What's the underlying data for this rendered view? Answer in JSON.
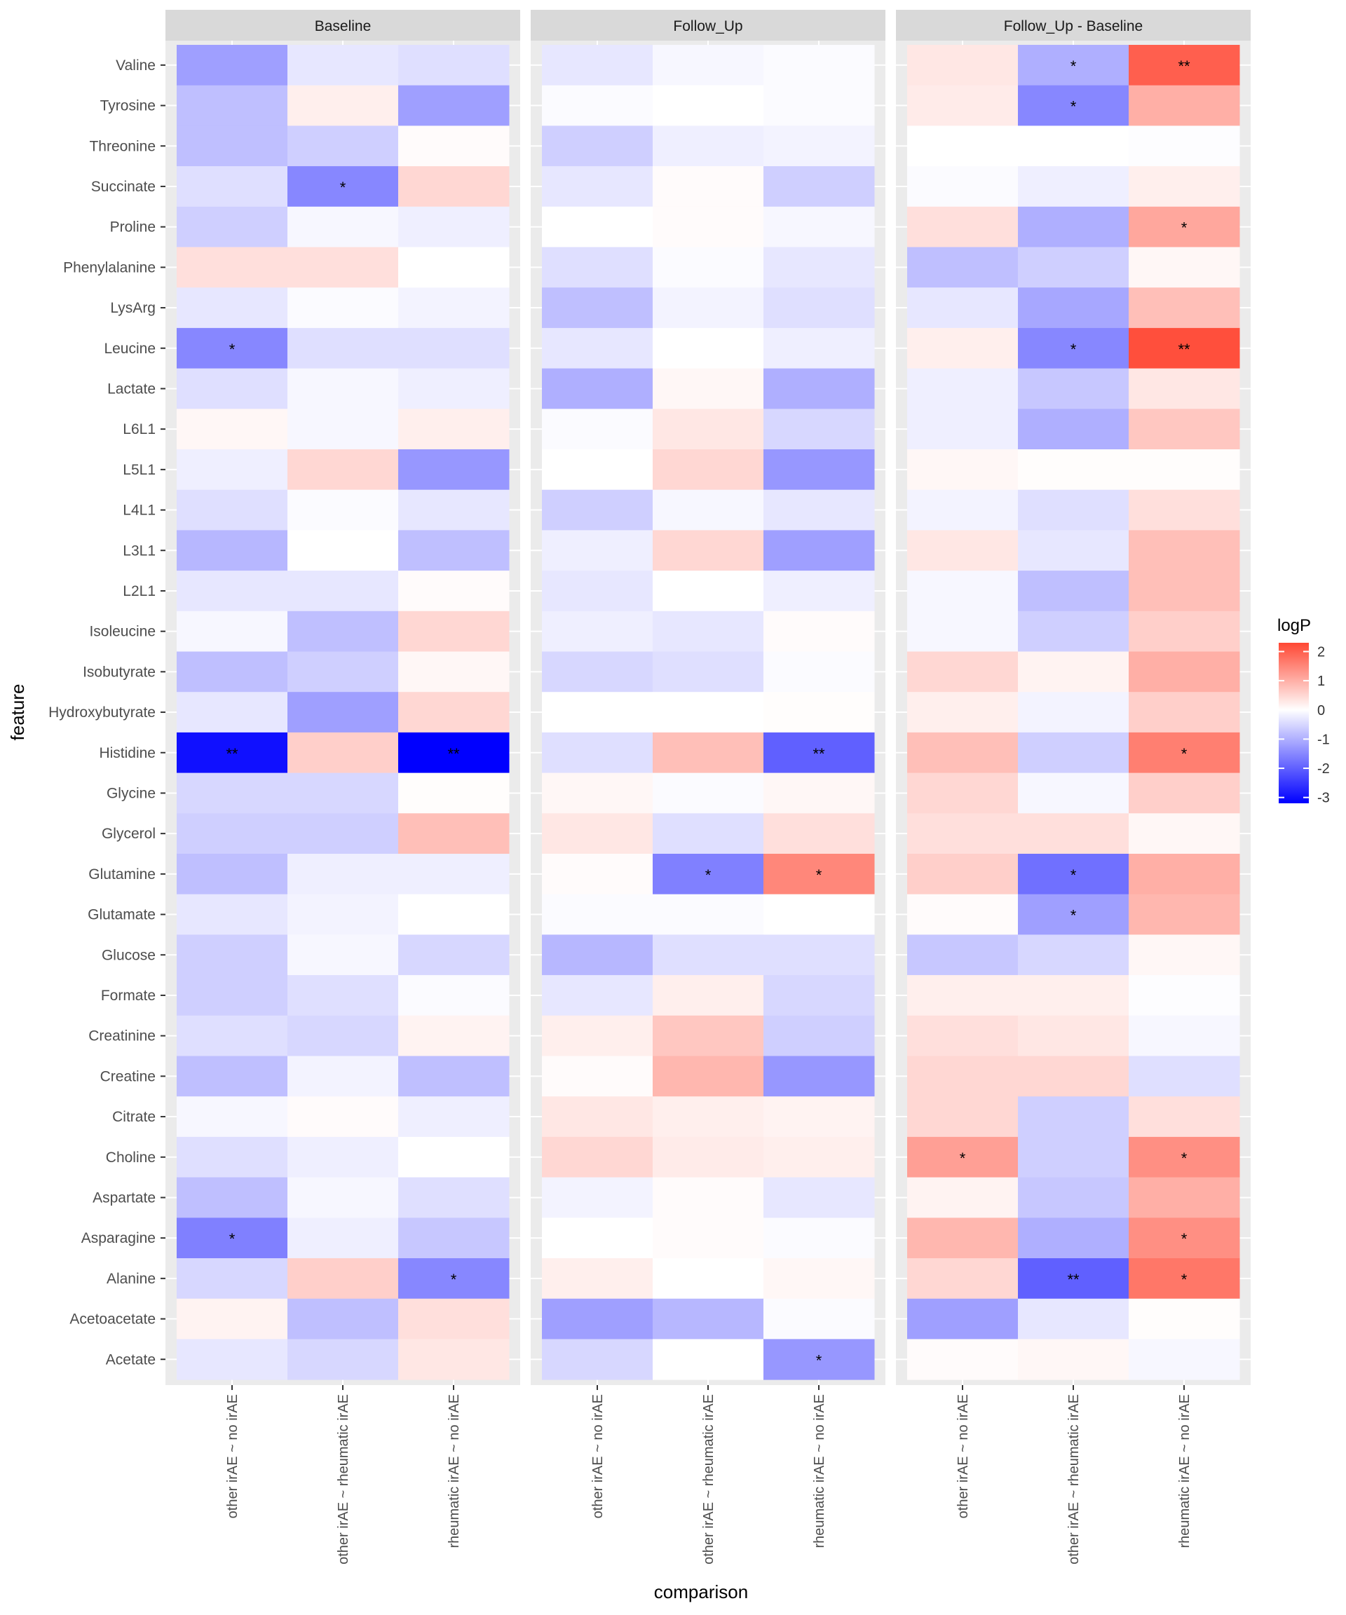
{
  "chart_data": {
    "type": "heatmap",
    "xlabel": "comparison",
    "ylabel": "feature",
    "legend": {
      "title": "logP",
      "placement": "right",
      "range": [
        -3.2,
        2.3
      ],
      "ticks": [
        2,
        1,
        0,
        -1,
        -2,
        -3
      ],
      "tick_labels": [
        "2",
        "1",
        "0",
        "-1",
        "-2",
        "-3"
      ],
      "colors": {
        "low": "#0000ff",
        "mid": "#ffffff",
        "high": "#ff4733"
      }
    },
    "features": [
      "Valine",
      "Tyrosine",
      "Threonine",
      "Succinate",
      "Proline",
      "Phenylalanine",
      "LysArg",
      "Leucine",
      "Lactate",
      "L6L1",
      "L5L1",
      "L4L1",
      "L3L1",
      "L2L1",
      "Isoleucine",
      "Isobutyrate",
      "Hydroxybutyrate",
      "Histidine",
      "Glycine",
      "Glycerol",
      "Glutamine",
      "Glutamate",
      "Glucose",
      "Formate",
      "Creatinine",
      "Creatine",
      "Citrate",
      "Choline",
      "Aspartate",
      "Asparagine",
      "Alanine",
      "Acetoacetate",
      "Acetate"
    ],
    "comparisons": [
      "other irAE ~ no irAE",
      "other irAE ~ rheumatic irAE",
      "rheumatic irAE ~ no irAE"
    ],
    "facets": [
      {
        "title": "Baseline",
        "values": [
          [
            -1.2,
            -0.3,
            -0.4
          ],
          [
            -0.8,
            0.2,
            -1.2
          ],
          [
            -0.8,
            -0.6,
            0.05
          ],
          [
            -0.4,
            -1.5,
            0.5
          ],
          [
            -0.6,
            -0.1,
            -0.2
          ],
          [
            0.4,
            0.4,
            0.0
          ],
          [
            -0.3,
            -0.05,
            -0.15
          ],
          [
            -1.5,
            -0.4,
            -0.4
          ],
          [
            -0.4,
            -0.1,
            -0.2
          ],
          [
            0.1,
            -0.1,
            0.2
          ],
          [
            -0.2,
            0.5,
            -1.3
          ],
          [
            -0.4,
            -0.05,
            -0.3
          ],
          [
            -0.9,
            0.0,
            -0.8
          ],
          [
            -0.3,
            -0.3,
            0.05
          ],
          [
            -0.1,
            -0.8,
            0.5
          ],
          [
            -0.8,
            -0.6,
            0.1
          ],
          [
            -0.3,
            -1.2,
            0.5
          ],
          [
            -3.0,
            0.6,
            -3.2
          ],
          [
            -0.5,
            -0.5,
            0.03
          ],
          [
            -0.6,
            -0.6,
            0.8
          ],
          [
            -0.8,
            -0.2,
            -0.2
          ],
          [
            -0.3,
            -0.15,
            0.0
          ],
          [
            -0.6,
            -0.1,
            -0.5
          ],
          [
            -0.6,
            -0.4,
            -0.05
          ],
          [
            -0.4,
            -0.5,
            0.15
          ],
          [
            -0.8,
            -0.15,
            -0.8
          ],
          [
            -0.1,
            0.05,
            -0.2
          ],
          [
            -0.4,
            -0.2,
            0.0
          ],
          [
            -0.8,
            -0.1,
            -0.4
          ],
          [
            -1.6,
            -0.2,
            -0.7
          ],
          [
            -0.5,
            0.6,
            -1.5
          ],
          [
            0.15,
            -0.8,
            0.4
          ],
          [
            -0.3,
            -0.5,
            0.3
          ]
        ],
        "stars": [
          [
            "",
            "",
            ""
          ],
          [
            "",
            "",
            ""
          ],
          [
            "",
            "",
            ""
          ],
          [
            "",
            "*",
            ""
          ],
          [
            "",
            "",
            ""
          ],
          [
            "",
            "",
            ""
          ],
          [
            "",
            "",
            ""
          ],
          [
            "*",
            "",
            ""
          ],
          [
            "",
            "",
            ""
          ],
          [
            "",
            "",
            ""
          ],
          [
            "",
            "",
            ""
          ],
          [
            "",
            "",
            ""
          ],
          [
            "",
            "",
            ""
          ],
          [
            "",
            "",
            ""
          ],
          [
            "",
            "",
            ""
          ],
          [
            "",
            "",
            ""
          ],
          [
            "",
            "",
            ""
          ],
          [
            "**",
            "",
            "**"
          ],
          [
            "",
            "",
            ""
          ],
          [
            "",
            "",
            ""
          ],
          [
            "",
            "",
            ""
          ],
          [
            "",
            "",
            ""
          ],
          [
            "",
            "",
            ""
          ],
          [
            "",
            "",
            ""
          ],
          [
            "",
            "",
            ""
          ],
          [
            "",
            "",
            ""
          ],
          [
            "",
            "",
            ""
          ],
          [
            "",
            "",
            ""
          ],
          [
            "",
            "",
            ""
          ],
          [
            "*",
            "",
            ""
          ],
          [
            "",
            "",
            "*"
          ],
          [
            "",
            "",
            ""
          ],
          [
            "",
            "",
            ""
          ]
        ]
      },
      {
        "title": "Follow_Up",
        "values": [
          [
            -0.3,
            -0.1,
            -0.05
          ],
          [
            -0.05,
            0.0,
            -0.05
          ],
          [
            -0.6,
            -0.2,
            -0.15
          ],
          [
            -0.3,
            0.05,
            -0.6
          ],
          [
            0.0,
            0.05,
            -0.1
          ],
          [
            -0.4,
            -0.05,
            -0.3
          ],
          [
            -0.8,
            -0.15,
            -0.4
          ],
          [
            -0.3,
            0.0,
            -0.2
          ],
          [
            -1.0,
            0.1,
            -1.0
          ],
          [
            -0.05,
            0.3,
            -0.5
          ],
          [
            0.0,
            0.5,
            -1.3
          ],
          [
            -0.6,
            -0.1,
            -0.3
          ],
          [
            -0.2,
            0.5,
            -1.2
          ],
          [
            -0.3,
            0.0,
            -0.2
          ],
          [
            -0.2,
            -0.3,
            0.05
          ],
          [
            -0.5,
            -0.4,
            -0.05
          ],
          [
            0.0,
            0.0,
            0.03
          ],
          [
            -0.4,
            0.8,
            -2.0
          ],
          [
            0.1,
            -0.05,
            0.1
          ],
          [
            0.3,
            -0.4,
            0.4
          ],
          [
            0.05,
            -1.6,
            1.5
          ],
          [
            -0.05,
            -0.05,
            0.0
          ],
          [
            -0.9,
            -0.4,
            -0.4
          ],
          [
            -0.3,
            0.2,
            -0.5
          ],
          [
            0.2,
            0.7,
            -0.6
          ],
          [
            0.05,
            0.9,
            -1.3
          ],
          [
            0.3,
            0.2,
            0.15
          ],
          [
            0.5,
            0.25,
            0.2
          ],
          [
            -0.15,
            0.05,
            -0.3
          ],
          [
            0.0,
            0.05,
            -0.05
          ],
          [
            0.2,
            0.0,
            0.1
          ],
          [
            -1.2,
            -0.9,
            -0.05
          ],
          [
            -0.5,
            0.0,
            -1.3
          ]
        ],
        "stars": [
          [
            "",
            "",
            ""
          ],
          [
            "",
            "",
            ""
          ],
          [
            "",
            "",
            ""
          ],
          [
            "",
            "",
            ""
          ],
          [
            "",
            "",
            ""
          ],
          [
            "",
            "",
            ""
          ],
          [
            "",
            "",
            ""
          ],
          [
            "",
            "",
            ""
          ],
          [
            "",
            "",
            ""
          ],
          [
            "",
            "",
            ""
          ],
          [
            "",
            "",
            ""
          ],
          [
            "",
            "",
            ""
          ],
          [
            "",
            "",
            ""
          ],
          [
            "",
            "",
            ""
          ],
          [
            "",
            "",
            ""
          ],
          [
            "",
            "",
            ""
          ],
          [
            "",
            "",
            ""
          ],
          [
            "",
            "",
            "**"
          ],
          [
            "",
            "",
            ""
          ],
          [
            "",
            "",
            ""
          ],
          [
            "",
            "*",
            "*"
          ],
          [
            "",
            "",
            ""
          ],
          [
            "",
            "",
            ""
          ],
          [
            "",
            "",
            ""
          ],
          [
            "",
            "",
            ""
          ],
          [
            "",
            "",
            ""
          ],
          [
            "",
            "",
            ""
          ],
          [
            "",
            "",
            ""
          ],
          [
            "",
            "",
            ""
          ],
          [
            "",
            "",
            ""
          ],
          [
            "",
            "",
            ""
          ],
          [
            "",
            "",
            ""
          ],
          [
            "",
            "",
            "*"
          ]
        ]
      },
      {
        "title": "Follow_Up - Baseline",
        "values": [
          [
            0.3,
            -1.0,
            2.0
          ],
          [
            0.25,
            -1.5,
            1.0
          ],
          [
            0.0,
            0.0,
            -0.03
          ],
          [
            -0.05,
            -0.2,
            0.2
          ],
          [
            0.4,
            -1.0,
            1.1
          ],
          [
            -0.8,
            -0.6,
            0.1
          ],
          [
            -0.3,
            -1.1,
            0.8
          ],
          [
            0.2,
            -1.5,
            2.2
          ],
          [
            -0.2,
            -0.7,
            0.3
          ],
          [
            -0.2,
            -1.0,
            0.7
          ],
          [
            0.1,
            0.03,
            0.03
          ],
          [
            -0.15,
            -0.4,
            0.4
          ],
          [
            0.3,
            -0.3,
            0.8
          ],
          [
            -0.1,
            -0.8,
            0.8
          ],
          [
            -0.1,
            -0.6,
            0.6
          ],
          [
            0.5,
            0.15,
            1.0
          ],
          [
            0.2,
            -0.15,
            0.6
          ],
          [
            0.8,
            -0.6,
            1.6
          ],
          [
            0.5,
            -0.1,
            0.6
          ],
          [
            0.4,
            0.4,
            0.1
          ],
          [
            0.6,
            -1.8,
            1.0
          ],
          [
            0.05,
            -1.2,
            0.9
          ],
          [
            -0.7,
            -0.5,
            0.1
          ],
          [
            0.2,
            0.2,
            -0.03
          ],
          [
            0.4,
            0.3,
            -0.1
          ],
          [
            0.5,
            0.5,
            -0.4
          ],
          [
            0.5,
            -0.6,
            0.4
          ],
          [
            1.2,
            -0.6,
            1.4
          ],
          [
            0.15,
            -0.7,
            1.0
          ],
          [
            0.9,
            -1.0,
            1.4
          ],
          [
            0.5,
            -2.0,
            1.7
          ],
          [
            -1.2,
            -0.3,
            0.03
          ],
          [
            0.05,
            0.1,
            -0.1
          ]
        ],
        "stars": [
          [
            "",
            "*",
            "**"
          ],
          [
            "",
            "*",
            ""
          ],
          [
            "",
            "",
            ""
          ],
          [
            "",
            "",
            ""
          ],
          [
            "",
            "",
            "*"
          ],
          [
            "",
            "",
            ""
          ],
          [
            "",
            "",
            ""
          ],
          [
            "",
            "*",
            "**"
          ],
          [
            "",
            "",
            ""
          ],
          [
            "",
            "",
            ""
          ],
          [
            "",
            "",
            ""
          ],
          [
            "",
            "",
            ""
          ],
          [
            "",
            "",
            ""
          ],
          [
            "",
            "",
            ""
          ],
          [
            "",
            "",
            ""
          ],
          [
            "",
            "",
            ""
          ],
          [
            "",
            "",
            ""
          ],
          [
            "",
            "",
            "*"
          ],
          [
            "",
            "",
            ""
          ],
          [
            "",
            "",
            ""
          ],
          [
            "",
            "*",
            ""
          ],
          [
            "",
            "*",
            ""
          ],
          [
            "",
            "",
            ""
          ],
          [
            "",
            "",
            ""
          ],
          [
            "",
            "",
            ""
          ],
          [
            "",
            "",
            ""
          ],
          [
            "",
            "",
            ""
          ],
          [
            "*",
            "",
            "*"
          ],
          [
            "",
            "",
            ""
          ],
          [
            "",
            "",
            "*"
          ],
          [
            "",
            "**",
            "*"
          ],
          [
            "",
            "",
            ""
          ],
          [
            "",
            "",
            ""
          ]
        ]
      }
    ]
  }
}
